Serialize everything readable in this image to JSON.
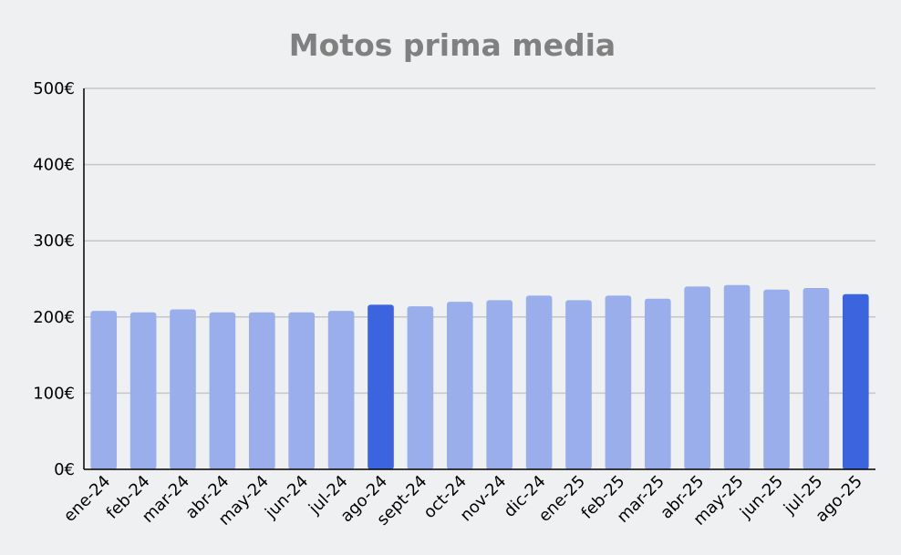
{
  "chart_data": {
    "type": "bar",
    "title": "Motos prima media",
    "xlabel": "",
    "ylabel": "",
    "categories": [
      "ene-24",
      "feb-24",
      "mar-24",
      "abr-24",
      "may-24",
      "jun-24",
      "jul-24",
      "ago-24",
      "sept-24",
      "oct-24",
      "nov-24",
      "dic-24",
      "ene-25",
      "feb-25",
      "mar-25",
      "abr-25",
      "may-25",
      "jun-25",
      "jul-25",
      "ago-25"
    ],
    "values": [
      208,
      206,
      210,
      206,
      206,
      206,
      208,
      216,
      214,
      220,
      222,
      228,
      222,
      228,
      224,
      240,
      242,
      236,
      238,
      230
    ],
    "highlighted": [
      "ago-24",
      "ago-25"
    ],
    "ylim": [
      0,
      500
    ],
    "y_ticks": [
      0,
      100,
      200,
      300,
      400,
      500
    ],
    "y_tick_labels": [
      "0€",
      "100€",
      "200€",
      "300€",
      "400€",
      "500€"
    ],
    "grid": true,
    "legend": "none",
    "colors": {
      "bar": "#99aeeb",
      "bar_highlight": "#3c64de",
      "title": "#808080",
      "grid": "#c4c6c8",
      "axis": "#000000",
      "tick_text": "#000000",
      "background": "#eef0f2"
    }
  }
}
